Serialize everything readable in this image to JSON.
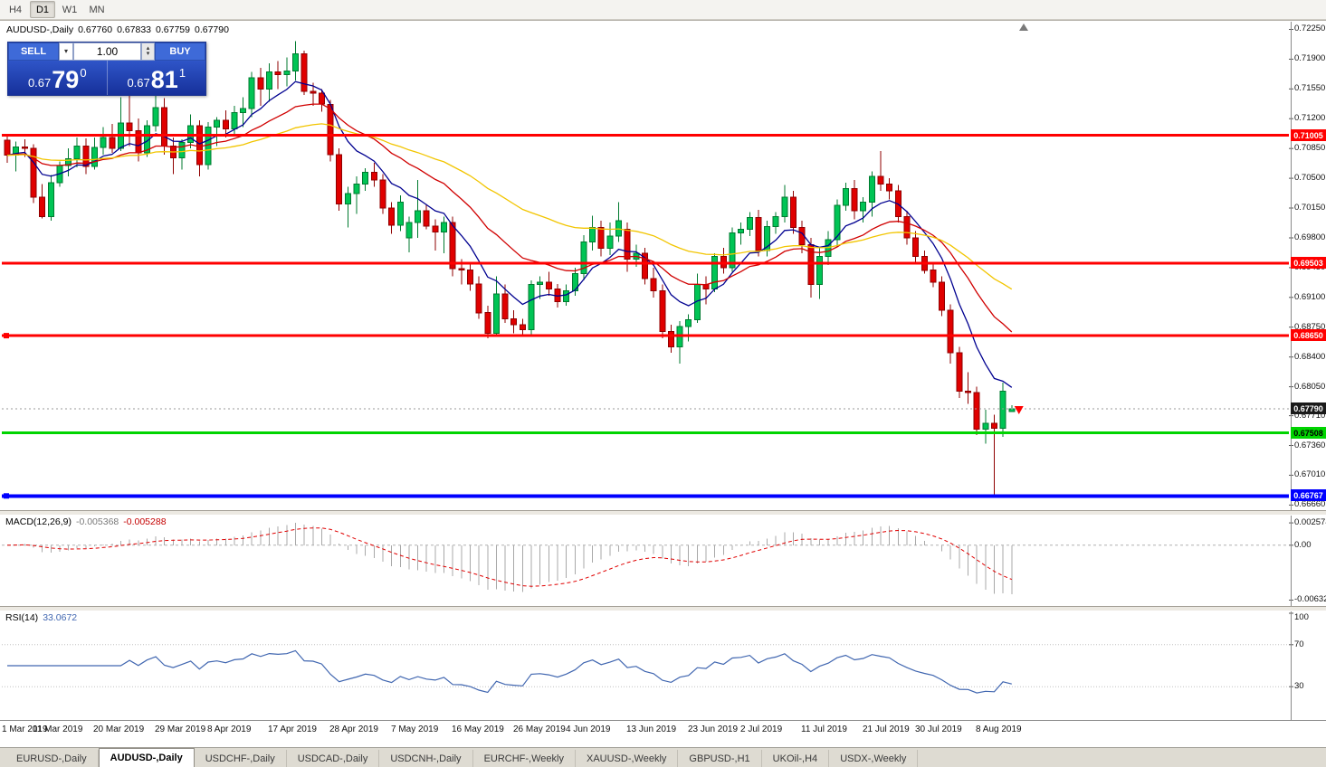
{
  "toolbar": {
    "timeframes": [
      {
        "label": "H4",
        "active": false
      },
      {
        "label": "D1",
        "active": true
      },
      {
        "label": "W1",
        "active": false
      },
      {
        "label": "MN",
        "active": false
      }
    ]
  },
  "chart": {
    "symbol": "AUDUSD-,Daily",
    "ohlc": {
      "open": "0.67760",
      "high": "0.67833",
      "low": "0.67759",
      "close": "0.67790"
    }
  },
  "trade_panel": {
    "sell_label": "SELL",
    "buy_label": "BUY",
    "volume": "1.00",
    "sell_price": {
      "base": "0.67",
      "pips": "79",
      "point": "0"
    },
    "buy_price": {
      "base": "0.67",
      "pips": "81",
      "point": "1"
    }
  },
  "chart_data": {
    "type": "candlestick",
    "symbol": "AUDUSD-,Daily",
    "ylim": {
      "max": 0.7234,
      "min": 0.666
    },
    "colors": {
      "up": "#00c455",
      "up_border": "#007a2f",
      "down": "#e00000",
      "down_border": "#8f0000",
      "background": "#ffffff"
    },
    "y_axis_labels": [
      "0.72250",
      "0.71900",
      "0.71550",
      "0.71200",
      "0.70850",
      "0.70500",
      "0.70150",
      "0.69800",
      "0.69450",
      "0.69100",
      "0.68750",
      "0.68400",
      "0.68050",
      "0.67710",
      "0.67360",
      "0.67010",
      "0.66660"
    ],
    "x_labels": [
      {
        "text": "1 Mar 2019",
        "bar": 0
      },
      {
        "text": "11 Mar 2019",
        "bar": 6
      },
      {
        "text": "20 Mar 2019",
        "bar": 13
      },
      {
        "text": "29 Mar 2019",
        "bar": 20
      },
      {
        "text": "8 Apr 2019",
        "bar": 26
      },
      {
        "text": "17 Apr 2019",
        "bar": 33
      },
      {
        "text": "28 Apr 2019",
        "bar": 40
      },
      {
        "text": "7 May 2019",
        "bar": 47
      },
      {
        "text": "16 May 2019",
        "bar": 54
      },
      {
        "text": "26 May 2019",
        "bar": 61
      },
      {
        "text": "4 Jun 2019",
        "bar": 67
      },
      {
        "text": "13 Jun 2019",
        "bar": 74
      },
      {
        "text": "23 Jun 2019",
        "bar": 81
      },
      {
        "text": "2 Jul 2019",
        "bar": 87
      },
      {
        "text": "11 Jul 2019",
        "bar": 94
      },
      {
        "text": "21 Jul 2019",
        "bar": 101
      },
      {
        "text": "30 Jul 2019",
        "bar": 107
      },
      {
        "text": "8 Aug 2019",
        "bar": 114
      }
    ],
    "candles": [
      [
        0.7095,
        0.71,
        0.7068,
        0.7077
      ],
      [
        0.7077,
        0.7093,
        0.7058,
        0.7087
      ],
      [
        0.7087,
        0.7096,
        0.7075,
        0.7085
      ],
      [
        0.7085,
        0.709,
        0.7021,
        0.7028
      ],
      [
        0.7028,
        0.7043,
        0.7003,
        0.7005
      ],
      [
        0.7005,
        0.7054,
        0.7,
        0.7045
      ],
      [
        0.7045,
        0.707,
        0.704,
        0.7065
      ],
      [
        0.7065,
        0.7085,
        0.7052,
        0.7073
      ],
      [
        0.7073,
        0.7098,
        0.7063,
        0.7088
      ],
      [
        0.7088,
        0.7097,
        0.7055,
        0.7064
      ],
      [
        0.7064,
        0.7098,
        0.706,
        0.7086
      ],
      [
        0.7086,
        0.711,
        0.7078,
        0.7098
      ],
      [
        0.7098,
        0.7114,
        0.708,
        0.7085
      ],
      [
        0.7085,
        0.7145,
        0.7082,
        0.7115
      ],
      [
        0.7115,
        0.716,
        0.7088,
        0.7106
      ],
      [
        0.7106,
        0.712,
        0.707,
        0.708
      ],
      [
        0.708,
        0.7118,
        0.7075,
        0.7112
      ],
      [
        0.7112,
        0.7155,
        0.7105,
        0.7133
      ],
      [
        0.7133,
        0.7144,
        0.7078,
        0.7088
      ],
      [
        0.7088,
        0.7098,
        0.7055,
        0.7074
      ],
      [
        0.7074,
        0.7096,
        0.706,
        0.7092
      ],
      [
        0.7092,
        0.7125,
        0.7085,
        0.7112
      ],
      [
        0.7112,
        0.7118,
        0.7052,
        0.7066
      ],
      [
        0.7066,
        0.7116,
        0.706,
        0.711
      ],
      [
        0.711,
        0.7122,
        0.7088,
        0.7118
      ],
      [
        0.7118,
        0.713,
        0.7098,
        0.7108
      ],
      [
        0.7108,
        0.7135,
        0.71,
        0.7127
      ],
      [
        0.7127,
        0.7145,
        0.711,
        0.7132
      ],
      [
        0.7132,
        0.7175,
        0.7122,
        0.7168
      ],
      [
        0.7168,
        0.718,
        0.7135,
        0.7155
      ],
      [
        0.7155,
        0.7185,
        0.714,
        0.7175
      ],
      [
        0.7175,
        0.7188,
        0.7155,
        0.7172
      ],
      [
        0.7172,
        0.7192,
        0.7158,
        0.7176
      ],
      [
        0.7176,
        0.7211,
        0.7165,
        0.7196
      ],
      [
        0.7196,
        0.72,
        0.7148,
        0.7152
      ],
      [
        0.7152,
        0.7162,
        0.7135,
        0.715
      ],
      [
        0.715,
        0.7155,
        0.7128,
        0.7137
      ],
      [
        0.7137,
        0.7142,
        0.707,
        0.7078
      ],
      [
        0.7078,
        0.7085,
        0.7012,
        0.702
      ],
      [
        0.702,
        0.704,
        0.6992,
        0.7032
      ],
      [
        0.7032,
        0.7052,
        0.7008,
        0.7043
      ],
      [
        0.7043,
        0.7062,
        0.7035,
        0.7057
      ],
      [
        0.7057,
        0.7068,
        0.704,
        0.7048
      ],
      [
        0.7048,
        0.7055,
        0.7008,
        0.7015
      ],
      [
        0.7015,
        0.7022,
        0.6985,
        0.6995
      ],
      [
        0.6995,
        0.703,
        0.6988,
        0.7022
      ],
      [
        0.698,
        0.7005,
        0.6963,
        0.6998
      ],
      [
        0.6998,
        0.7048,
        0.698,
        0.7012
      ],
      [
        0.7012,
        0.702,
        0.699,
        0.6994
      ],
      [
        0.6994,
        0.7002,
        0.6965,
        0.6987
      ],
      [
        0.6987,
        0.7005,
        0.6962,
        0.6998
      ],
      [
        0.6998,
        0.7005,
        0.6935,
        0.6944
      ],
      [
        0.6944,
        0.6955,
        0.6925,
        0.6942
      ],
      [
        0.6942,
        0.695,
        0.6918,
        0.6926
      ],
      [
        0.6926,
        0.6935,
        0.6885,
        0.6892
      ],
      [
        0.6892,
        0.69,
        0.6862,
        0.6868
      ],
      [
        0.6868,
        0.6935,
        0.6865,
        0.6914
      ],
      [
        0.6914,
        0.6925,
        0.688,
        0.6885
      ],
      [
        0.6885,
        0.6895,
        0.6868,
        0.6878
      ],
      [
        0.6878,
        0.6885,
        0.6865,
        0.6872
      ],
      [
        0.6872,
        0.693,
        0.6866,
        0.6925
      ],
      [
        0.6925,
        0.6935,
        0.6908,
        0.6928
      ],
      [
        0.6928,
        0.694,
        0.6912,
        0.692
      ],
      [
        0.692,
        0.6926,
        0.6898,
        0.6905
      ],
      [
        0.6905,
        0.6925,
        0.69,
        0.6918
      ],
      [
        0.6918,
        0.6945,
        0.6912,
        0.6938
      ],
      [
        0.6938,
        0.6983,
        0.693,
        0.6975
      ],
      [
        0.6975,
        0.7006,
        0.6965,
        0.6992
      ],
      [
        0.6992,
        0.7,
        0.6958,
        0.6968
      ],
      [
        0.6968,
        0.6998,
        0.696,
        0.6982
      ],
      [
        0.6982,
        0.7022,
        0.6975,
        0.7
      ],
      [
        0.699,
        0.6998,
        0.694,
        0.6955
      ],
      [
        0.6955,
        0.6972,
        0.6946,
        0.6962
      ],
      [
        0.6962,
        0.6968,
        0.6925,
        0.6932
      ],
      [
        0.6932,
        0.6945,
        0.691,
        0.6918
      ],
      [
        0.6918,
        0.6925,
        0.6862,
        0.687
      ],
      [
        0.687,
        0.6878,
        0.6845,
        0.6852
      ],
      [
        0.6852,
        0.6882,
        0.6832,
        0.6876
      ],
      [
        0.6876,
        0.689,
        0.6858,
        0.6884
      ],
      [
        0.6884,
        0.6938,
        0.688,
        0.6925
      ],
      [
        0.6925,
        0.6935,
        0.6902,
        0.692
      ],
      [
        0.692,
        0.6962,
        0.6916,
        0.6958
      ],
      [
        0.6958,
        0.6968,
        0.6938,
        0.6945
      ],
      [
        0.6945,
        0.6992,
        0.694,
        0.6986
      ],
      [
        0.6986,
        0.6998,
        0.6972,
        0.699
      ],
      [
        0.699,
        0.701,
        0.6982,
        0.7004
      ],
      [
        0.7004,
        0.7013,
        0.6958,
        0.6965
      ],
      [
        0.6965,
        0.7,
        0.6958,
        0.6993
      ],
      [
        0.6993,
        0.701,
        0.6985,
        0.7005
      ],
      [
        0.7005,
        0.7042,
        0.6998,
        0.7028
      ],
      [
        0.7028,
        0.7035,
        0.6985,
        0.6992
      ],
      [
        0.6992,
        0.7,
        0.6962,
        0.6972
      ],
      [
        0.6972,
        0.698,
        0.691,
        0.6925
      ],
      [
        0.6925,
        0.6968,
        0.6908,
        0.6958
      ],
      [
        0.6958,
        0.6988,
        0.6948,
        0.6978
      ],
      [
        0.6978,
        0.7025,
        0.697,
        0.7018
      ],
      [
        0.7018,
        0.7045,
        0.7012,
        0.7038
      ],
      [
        0.7038,
        0.7048,
        0.7002,
        0.7012
      ],
      [
        0.7012,
        0.7028,
        0.6998,
        0.7022
      ],
      [
        0.7022,
        0.7058,
        0.7005,
        0.7052
      ],
      [
        0.7052,
        0.7082,
        0.7035,
        0.7043
      ],
      [
        0.7043,
        0.705,
        0.7025,
        0.7035
      ],
      [
        0.7035,
        0.7042,
        0.6998,
        0.7005
      ],
      [
        0.7005,
        0.7012,
        0.6972,
        0.698
      ],
      [
        0.698,
        0.6988,
        0.695,
        0.6958
      ],
      [
        0.6958,
        0.6965,
        0.6938,
        0.6942
      ],
      [
        0.6942,
        0.6952,
        0.6922,
        0.6928
      ],
      [
        0.6928,
        0.6935,
        0.6888,
        0.6895
      ],
      [
        0.6895,
        0.6902,
        0.6832,
        0.6845
      ],
      [
        0.6845,
        0.6852,
        0.6792,
        0.68
      ],
      [
        0.68,
        0.6822,
        0.6785,
        0.6798
      ],
      [
        0.6798,
        0.6805,
        0.6748,
        0.6755
      ],
      [
        0.6755,
        0.6778,
        0.6738,
        0.6762
      ],
      [
        0.6762,
        0.6772,
        0.6678,
        0.6756
      ],
      [
        0.6756,
        0.681,
        0.6746,
        0.68
      ],
      [
        0.6776,
        0.67833,
        0.67759,
        0.6779
      ]
    ],
    "moving_averages": [
      {
        "period": 8,
        "color": "#000090"
      },
      {
        "period": 20,
        "color": "#d00000"
      },
      {
        "period": 45,
        "color": "#f2c500"
      }
    ],
    "h_lines": [
      {
        "price": 0.71005,
        "label": "0.71005",
        "color": "#ff0000",
        "text_color": "#ffffff",
        "width": 3,
        "handle": false
      },
      {
        "price": 0.69503,
        "label": "0.69503",
        "color": "#ff0000",
        "text_color": "#ffffff",
        "width": 3,
        "handle": false
      },
      {
        "price": 0.6865,
        "label": "0.68650",
        "color": "#ff0000",
        "text_color": "#ffffff",
        "width": 3,
        "handle": true
      },
      {
        "price": 0.67508,
        "label": "0.67508",
        "color": "#00d400",
        "text_color": "#000000",
        "width": 3,
        "handle": false
      },
      {
        "price": 0.66767,
        "label": "0.66767",
        "color": "#0000ff",
        "text_color": "#ffffff",
        "width": 4,
        "handle": true
      }
    ],
    "bid": {
      "price": 0.6779,
      "label": "0.67790",
      "bg": "#1a1a1a",
      "text_color": "#ffffff"
    },
    "last_bar_marker": {
      "color": "#ff0000"
    },
    "macd": {
      "label": "MACD(12,26,9)",
      "value": "-0.005368",
      "signal_value": "-0.005288",
      "fast": 12,
      "slow": 26,
      "signal": 9,
      "axis_labels": [
        "0.002574",
        "0.00",
        "-0.006326"
      ],
      "range": {
        "max": 0.003,
        "min": -0.0068
      },
      "hist_color": "#a8a8a8",
      "signal_color": "#e00000"
    },
    "rsi": {
      "label": "RSI(14)",
      "value": "33.0672",
      "period": 14,
      "axis_labels": [
        "100",
        "70",
        "30"
      ],
      "levels": [
        70,
        30
      ],
      "line_color": "#4066b0",
      "level_color": "#c0c0c0"
    }
  },
  "tabs": [
    {
      "label": "EURUSD-,Daily",
      "active": false
    },
    {
      "label": "AUDUSD-,Daily",
      "active": true
    },
    {
      "label": "USDCHF-,Daily",
      "active": false
    },
    {
      "label": "USDCAD-,Daily",
      "active": false
    },
    {
      "label": "USDCNH-,Daily",
      "active": false
    },
    {
      "label": "EURCHF-,Weekly",
      "active": false
    },
    {
      "label": "XAUUSD-,Weekly",
      "active": false
    },
    {
      "label": "GBPUSD-,H1",
      "active": false
    },
    {
      "label": "UKOil-,H4",
      "active": false
    },
    {
      "label": "USDX-,Weekly",
      "active": false
    }
  ]
}
